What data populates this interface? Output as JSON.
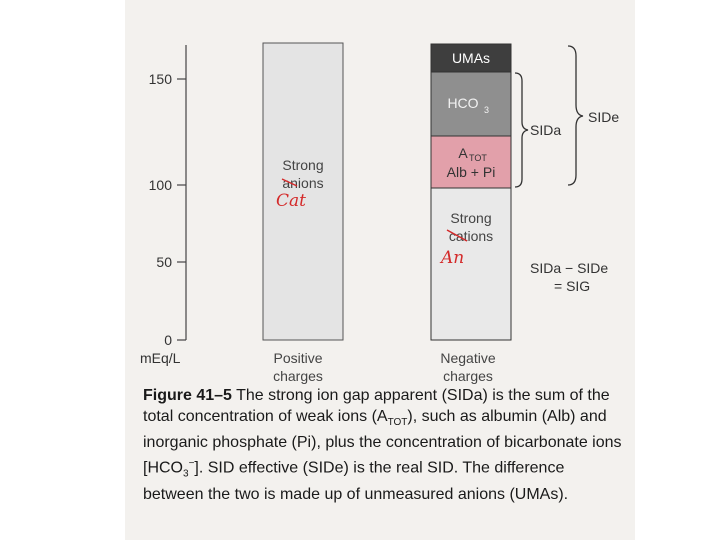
{
  "axis": {
    "ticks": [
      "0",
      "50",
      "100",
      "150"
    ],
    "unit_label": "mEq/L"
  },
  "left_column": {
    "label_line1": "Strong",
    "label_line2": "anions",
    "handwritten_note": "Cat",
    "x_label_line1": "Positive",
    "x_label_line2": "charges"
  },
  "right_column": {
    "segments": {
      "umas": "UMAs",
      "hco3_base": "HCO",
      "hco3_sub": "3",
      "atot_base": "A",
      "atot_sub": "TOT",
      "atot_line2": "Alb + Pi",
      "cations_line1": "Strong",
      "cations_line2": "cations"
    },
    "handwritten_note": "An",
    "x_label_line1": "Negative",
    "x_label_line2": "charges"
  },
  "brackets": {
    "sida": "SIDa",
    "side": "SIDe",
    "sig_line1": "SIDa − SIDe",
    "sig_line2": "= SIG"
  },
  "colors": {
    "umas": "#3e3e3e",
    "hco3": "#8f8f8f",
    "atot": "#e2a0aa",
    "cations": "#e9e9e9",
    "left_bar": "#e4e4e4",
    "handwriting": "#d42a2a"
  },
  "caption": {
    "figure_label": "Figure 41–5",
    "part1": " The strong ion gap apparent (SIDa) is the sum of the total concentration of weak ions (A",
    "sub_tot": "TOT",
    "part2": "), such as albumin (Alb) and inorganic phosphate (Pi), plus the concentration of bicarbonate ions [HCO",
    "sub_3": "3",
    "sup_minus": "−",
    "part3": "]. SID effective (SIDe) is the real SID. The difference between the two is made up of unmeasured anions (UMAs)."
  }
}
